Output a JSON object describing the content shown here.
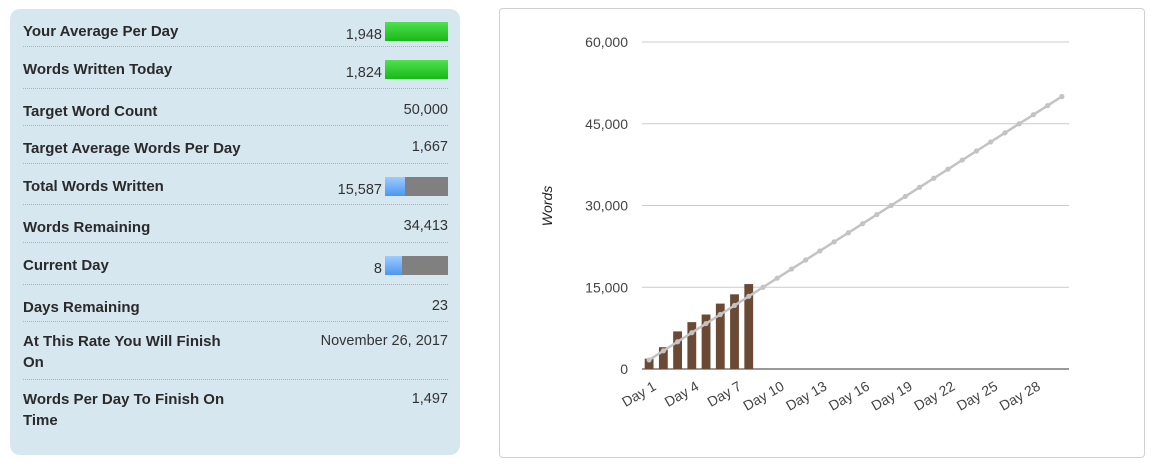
{
  "stats": [
    {
      "label": "Your Average Per Day",
      "value": "1,948",
      "bar": {
        "color": "green",
        "fill": 1.0
      }
    },
    {
      "label": "Words Written Today",
      "value": "1,824",
      "bar": {
        "color": "green",
        "fill": 1.0
      }
    },
    {
      "label": "Target Word Count",
      "value": "50,000"
    },
    {
      "label": "Target Average Words Per Day",
      "value": "1,667"
    },
    {
      "label": "Total Words Written",
      "value": "15,587",
      "bar": {
        "color": "blue",
        "fill": 0.31
      }
    },
    {
      "label": "Words Remaining",
      "value": "34,413"
    },
    {
      "label": "Current Day",
      "value": "8",
      "bar": {
        "color": "blue",
        "fill": 0.27
      }
    },
    {
      "label": "Days Remaining",
      "value": "23"
    },
    {
      "label": "At This Rate You Will Finish On",
      "value": "November 26, 2017"
    },
    {
      "label": "Words Per Day To Finish On Time",
      "value": "1,497"
    }
  ],
  "chart_data": {
    "type": "bar",
    "ylabel": "Words",
    "ylim": [
      0,
      60000
    ],
    "yticks": [
      "60,000",
      "45,000",
      "30,000",
      "15,000",
      "0"
    ],
    "ytick_values": [
      60000,
      45000,
      30000,
      15000,
      0
    ],
    "xtick_labels": [
      "Day 1",
      "Day 4",
      "Day 7",
      "Day 10",
      "Day 13",
      "Day 16",
      "Day 19",
      "Day 22",
      "Day 25",
      "Day 28"
    ],
    "days": 30,
    "series": [
      {
        "type": "bar",
        "color": "#6b4a35",
        "values": [
          1900,
          4000,
          6900,
          8600,
          10000,
          12000,
          13700,
          15587
        ]
      },
      {
        "type": "line",
        "color": "#c3c3c3",
        "values": [
          1667,
          3333,
          5000,
          6667,
          8333,
          10000,
          11667,
          13333,
          15000,
          16667,
          18333,
          20000,
          21667,
          23333,
          25000,
          26667,
          28333,
          30000,
          31667,
          33333,
          35000,
          36667,
          38333,
          40000,
          41667,
          43333,
          45000,
          46667,
          48333,
          50000
        ]
      }
    ],
    "grid": true
  }
}
